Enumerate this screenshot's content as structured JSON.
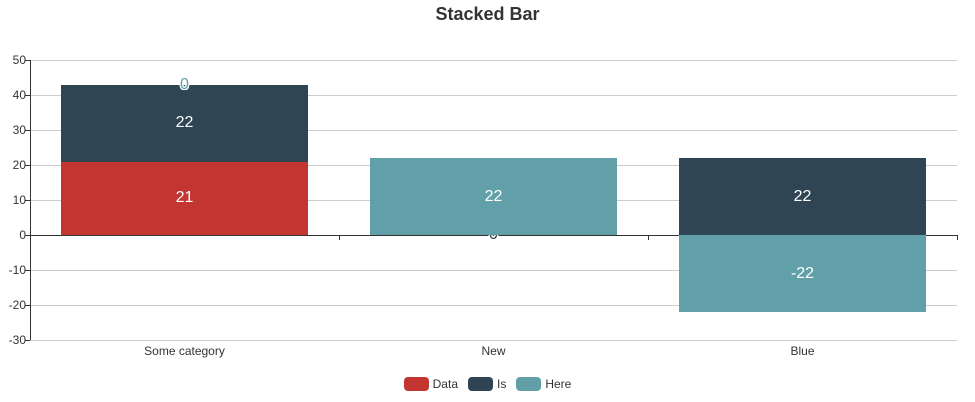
{
  "title": "Stacked Bar",
  "chart_data": {
    "type": "bar",
    "stacked": true,
    "title": "Stacked Bar",
    "categories": [
      "Some category",
      "New",
      "Blue"
    ],
    "series": [
      {
        "name": "Data",
        "color": "#c23531",
        "values": [
          21,
          0,
          0
        ]
      },
      {
        "name": "Is",
        "color": "#2f4554",
        "values": [
          22,
          0,
          22
        ]
      },
      {
        "name": "Here",
        "color": "#61a0a8",
        "values": [
          0,
          22,
          -22
        ]
      }
    ],
    "ylim": [
      -30,
      50
    ],
    "yticks": [
      50,
      40,
      30,
      20,
      10,
      0,
      -10,
      -20,
      -30
    ],
    "grid": true,
    "legend": [
      "Data",
      "Is",
      "Here"
    ],
    "legend_position": "bottom",
    "value_label_color": "#ffffff",
    "axis_label_color": "#333333",
    "gridline_color": "#cccccc",
    "axis_line_color": "#333333"
  }
}
